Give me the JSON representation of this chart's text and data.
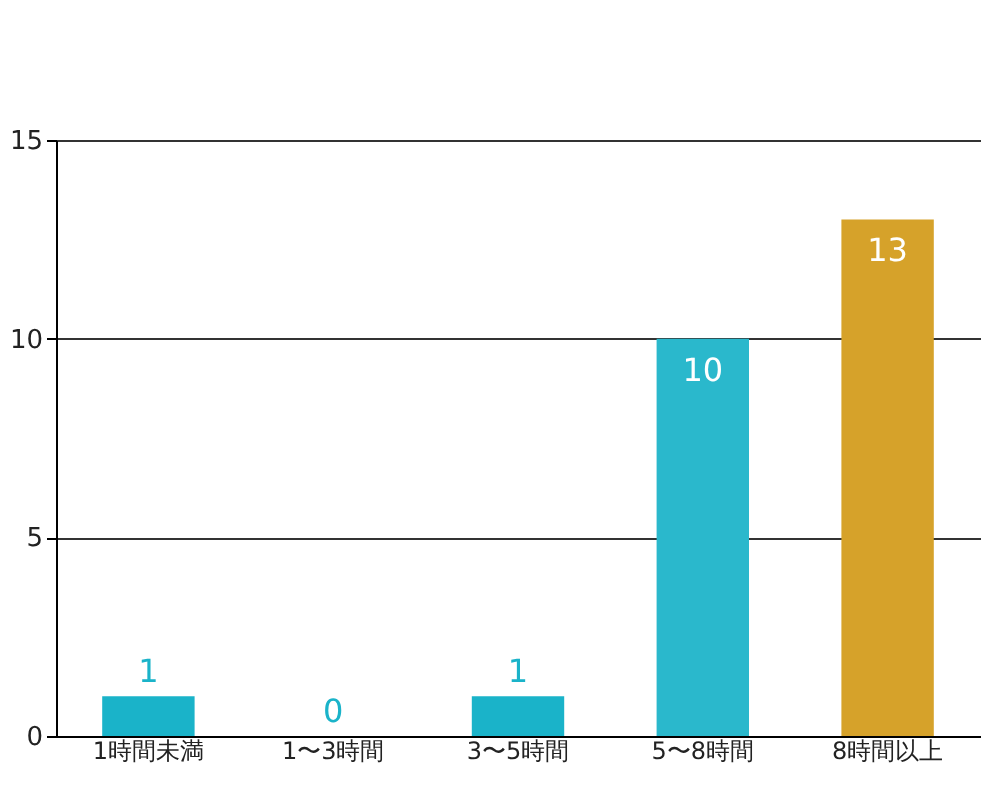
{
  "chart_data": {
    "type": "bar",
    "categories": [
      "1時間未満",
      "1〜3時間",
      "3〜5時間",
      "5〜8時間",
      "8時間以上"
    ],
    "values": [
      1,
      0,
      1,
      10,
      13
    ],
    "colors": [
      "#1ab3c9",
      "#1ab3c9",
      "#1ab3c9",
      "#2ab8cc",
      "#d6a22a"
    ],
    "ylim": [
      0,
      15
    ],
    "yticks": [
      0,
      5,
      10,
      15
    ],
    "grid": "y",
    "data_labels": true
  }
}
